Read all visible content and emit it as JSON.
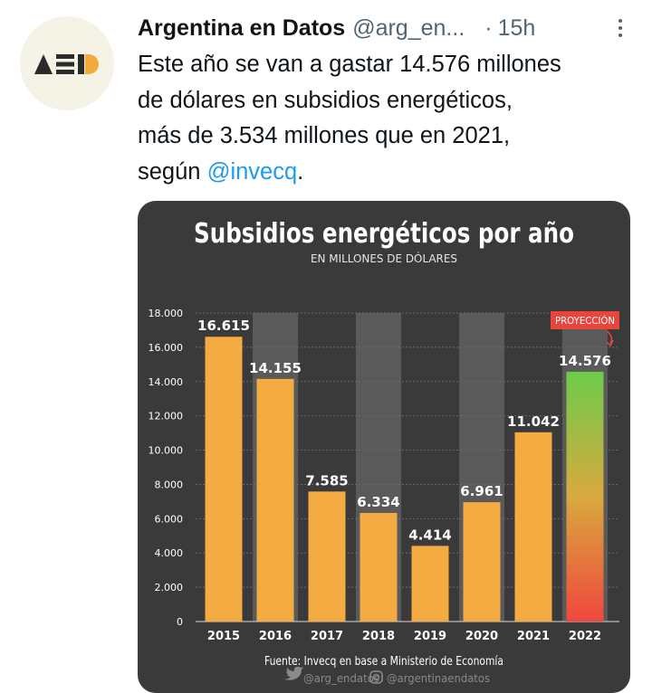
{
  "tweet": {
    "author_name": "Argentina en Datos",
    "author_handle": "@arg_en...",
    "separator": "·",
    "time": "15h",
    "avatar_icon": "aed-logo-icon",
    "text_lines": [
      "Este año se van a gastar 14.576 millones",
      "de dólares en subsidios energéticos,",
      "más de 3.534 millones que en 2021,"
    ],
    "text_last_prefix": "según ",
    "mention": "@invecq",
    "text_last_suffix": "."
  },
  "chart_data": {
    "type": "bar",
    "title": "Subsidios energéticos por año",
    "subtitle": "EN MILLONES DE DÓLARES",
    "categories": [
      "2015",
      "2016",
      "2017",
      "2018",
      "2019",
      "2020",
      "2021",
      "2022"
    ],
    "values": [
      16615,
      14155,
      7585,
      6334,
      4414,
      6961,
      11042,
      14576
    ],
    "value_labels": [
      "16.615",
      "14.155",
      "7.585",
      "6.334",
      "4.414",
      "6.961",
      "11.042",
      "14.576"
    ],
    "yticks": [
      0,
      2000,
      4000,
      6000,
      8000,
      10000,
      12000,
      14000,
      16000,
      18000
    ],
    "ytick_labels": [
      "0",
      "2.000",
      "4.000",
      "6.000",
      "8.000",
      "10.000",
      "12.000",
      "14.000",
      "16.000",
      "18.000"
    ],
    "ylim": [
      0,
      18000
    ],
    "grid": true,
    "projection_label": "PROYECCIÓN",
    "projection_category": "2022",
    "source": "Fuente: Invecq en base a Ministerio de Economía",
    "credit_twitter": "@arg_endatos",
    "credit_instagram": "@argentinaendatos",
    "colors": {
      "background": "#3a3a3a",
      "bar": "#f4ac42",
      "projection_top": "#6ccc4a",
      "projection_bottom": "#f0473e",
      "projection_badge": "#e8463c",
      "band": "#5a5a5a",
      "text": "#ffffff"
    }
  }
}
